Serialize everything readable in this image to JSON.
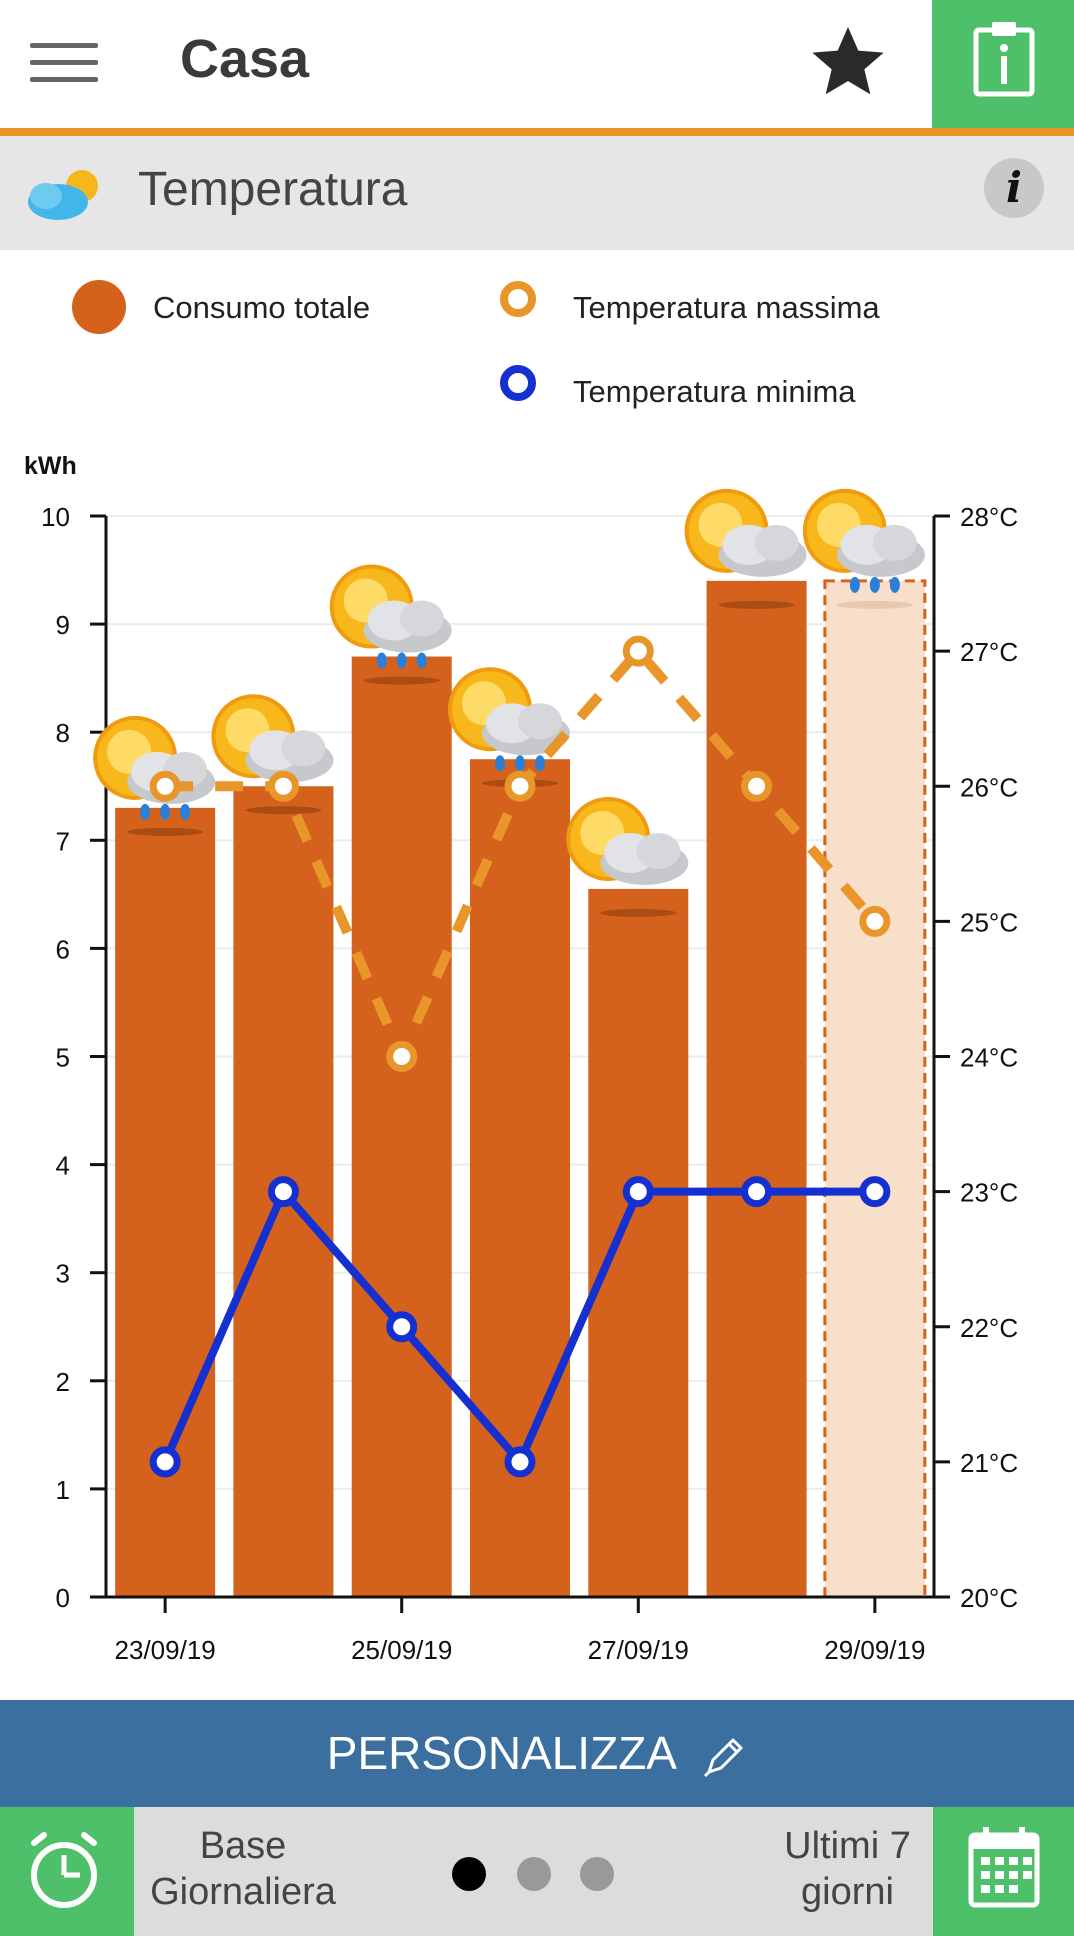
{
  "header": {
    "title": "Casa",
    "menu_icon": "hamburger-menu-icon",
    "favorite_icon": "star-icon",
    "clipboard_icon": "clipboard-info-icon"
  },
  "section": {
    "title": "Temperatura",
    "icon": "weather-cloud-sun-icon",
    "info_label": "i"
  },
  "legend": {
    "consumo": "Consumo totale",
    "tmax": "Temperatura massima",
    "tmin": "Temperatura minima"
  },
  "colors": {
    "bar": "#d4621c",
    "bar_partial": "#f7dfca",
    "tmax": "#e8962a",
    "tmin": "#1530d0",
    "accent_green": "#4fc06a",
    "personalizza_bg": "#3a6fa0"
  },
  "chart_data": {
    "type": "bar",
    "categories": [
      "23/09/19",
      "24/09/19",
      "25/09/19",
      "26/09/19",
      "27/09/19",
      "28/09/19",
      "29/09/19"
    ],
    "x_tick_labels": [
      "23/09/19",
      "25/09/19",
      "27/09/19",
      "29/09/19"
    ],
    "ylabel": "kWh",
    "ylim": [
      0,
      10
    ],
    "y_ticks": [
      "0",
      "1",
      "2",
      "3",
      "4",
      "5",
      "6",
      "7",
      "8",
      "9",
      "10"
    ],
    "y2_ticks": [
      "20°C",
      "21°C",
      "22°C",
      "23°C",
      "24°C",
      "25°C",
      "26°C",
      "27°C",
      "28°C"
    ],
    "y2lim": [
      20,
      28
    ],
    "series": [
      {
        "name": "Consumo totale",
        "type": "bar",
        "values": [
          7.3,
          7.5,
          8.7,
          7.75,
          6.55,
          9.4,
          9.4
        ],
        "partial_last": true
      },
      {
        "name": "Temperatura massima",
        "type": "line",
        "style": "dashed",
        "values": [
          26,
          26,
          24,
          26,
          27,
          26,
          25
        ]
      },
      {
        "name": "Temperatura minima",
        "type": "line",
        "style": "solid",
        "values": [
          21,
          23,
          22,
          21,
          23,
          23,
          23
        ]
      }
    ],
    "weather_icons": [
      "sun-cloud-rain",
      "sun-cloud",
      "sun-cloud-rain",
      "sun-cloud-rain",
      "sun-cloud",
      "sun-cloud",
      "sun-cloud-rain"
    ]
  },
  "actions": {
    "personalizza": "PERSONALIZZA",
    "pen_icon": "pen-icon"
  },
  "bottom": {
    "base_line1": "Base",
    "base_line2": "Giornaliera",
    "range_line1": "Ultimi 7",
    "range_line2": "giorni",
    "alarm_icon": "alarm-clock-icon",
    "calendar_icon": "calendar-icon",
    "page_dots": 3,
    "active_dot": 0
  }
}
